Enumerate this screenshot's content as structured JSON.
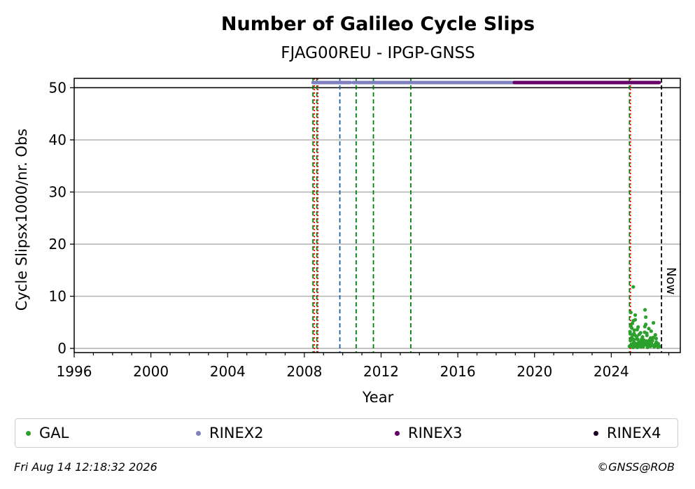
{
  "chart_data": {
    "type": "scatter",
    "title": "Number of Galileo Cycle Slips",
    "subtitle": "FJAG00REU - IPGP-GNSS",
    "xlabel": "Year",
    "ylabel": "Cycle Slipsx1000/nr. Obs",
    "xlim": [
      1996,
      2027.6
    ],
    "ylim": [
      -0.8,
      51.8
    ],
    "x_ticks": [
      1996,
      2000,
      2004,
      2008,
      2012,
      2016,
      2020,
      2024
    ],
    "x_tick_labels": [
      "1996",
      "2000",
      "2004",
      "2008",
      "2012",
      "2016",
      "2020",
      "2024"
    ],
    "y_ticks": [
      0,
      10,
      20,
      30,
      40,
      50
    ],
    "y_tick_labels": [
      "0",
      "10",
      "20",
      "30",
      "40",
      "50"
    ],
    "grid": "y",
    "horizontal_line": 50,
    "now_label": "Now",
    "now_x": 2026.62,
    "vlines": [
      {
        "x": 2008.45,
        "color": "#008000",
        "dash": "dashed"
      },
      {
        "x": 2008.52,
        "color": "#ff0000",
        "dash": "dotted"
      },
      {
        "x": 2008.65,
        "color": "#008000",
        "dash": "dashed"
      },
      {
        "x": 2008.7,
        "color": "#ff0000",
        "dash": "dotted"
      },
      {
        "x": 2009.85,
        "color": "#1f5fa8",
        "dash": "dashed"
      },
      {
        "x": 2010.7,
        "color": "#008000",
        "dash": "dashed"
      },
      {
        "x": 2011.6,
        "color": "#008000",
        "dash": "dashed"
      },
      {
        "x": 2013.55,
        "color": "#008000",
        "dash": "dashed"
      },
      {
        "x": 2024.95,
        "color": "#008000",
        "dash": "dashed"
      },
      {
        "x": 2025.0,
        "color": "#ff0000",
        "dash": "dotted"
      }
    ],
    "rinex_bars": [
      {
        "name": "RINEX2",
        "color": "#8080c0",
        "y": 51,
        "segments": [
          [
            2008.45,
            2010.4
          ],
          [
            2010.55,
            2018.95
          ]
        ]
      },
      {
        "name": "RINEX3",
        "color": "#660066",
        "y": 51,
        "segments": [
          [
            2018.95,
            2026.5
          ]
        ]
      }
    ],
    "series": [
      {
        "name": "GAL",
        "color": "#2ca02c",
        "x": [
          2024.95,
          2024.98,
          2025.0,
          2025.02,
          2025.05,
          2025.07,
          2025.1,
          2025.12,
          2025.15,
          2025.18,
          2025.2,
          2025.22,
          2025.25,
          2025.28,
          2025.3,
          2025.33,
          2025.36,
          2025.4,
          2025.43,
          2025.46,
          2025.5,
          2025.53,
          2025.56,
          2025.6,
          2025.63,
          2025.66,
          2025.7,
          2025.73,
          2025.76,
          2025.8,
          2025.83,
          2025.86,
          2025.9,
          2025.93,
          2025.96,
          2026.0,
          2026.05,
          2026.1,
          2026.15,
          2026.2,
          2026.25,
          2026.3,
          2026.35,
          2026.4,
          2026.45,
          2026.5,
          2025.15,
          2025.25,
          2025.35,
          2024.99,
          2025.04,
          2025.09,
          2025.14,
          2025.19,
          2025.24,
          2025.29,
          2025.34,
          2025.39,
          2025.44,
          2025.49,
          2025.54,
          2025.59,
          2025.64,
          2025.69,
          2025.74,
          2025.79,
          2025.84,
          2025.89,
          2025.94,
          2025.99,
          2026.04,
          2026.09,
          2026.14,
          2026.19,
          2026.24,
          2026.29,
          2026.34,
          2026.39,
          2026.44,
          2025.8,
          2025.75,
          2025.85,
          2026.08,
          2025.02,
          2025.07,
          2025.12,
          2025.17,
          2025.22
        ],
        "y": [
          0.4,
          3.2,
          1.5,
          6.9,
          0.8,
          2.1,
          4.8,
          0.3,
          11.8,
          1.2,
          3.5,
          0.6,
          5.5,
          2.4,
          0.9,
          1.8,
          0.2,
          4.1,
          1.1,
          2.7,
          0.5,
          3.0,
          1.4,
          0.7,
          2.2,
          0.3,
          1.6,
          0.9,
          7.4,
          4.6,
          1.0,
          2.5,
          0.4,
          1.3,
          3.8,
          0.6,
          2.0,
          0.8,
          1.5,
          4.9,
          0.5,
          2.6,
          1.2,
          0.7,
          0.9,
          0.4,
          5.3,
          6.4,
          3.6,
          2.8,
          0.5,
          1.9,
          0.2,
          2.9,
          1.0,
          0.4,
          2.3,
          1.7,
          0.6,
          1.1,
          0.3,
          1.8,
          0.5,
          1.2,
          3.1,
          0.7,
          1.4,
          0.2,
          0.9,
          1.6,
          0.4,
          1.1,
          0.6,
          2.1,
          0.3,
          0.8,
          1.9,
          0.5,
          0.2,
          6.0,
          4.2,
          2.9,
          3.3,
          4.3,
          3.9,
          2.6,
          1.7,
          0.9
        ]
      }
    ],
    "legend": [
      {
        "label": "GAL",
        "color": "#2ca02c"
      },
      {
        "label": "RINEX2",
        "color": "#8080c0"
      },
      {
        "label": "RINEX3",
        "color": "#660066"
      },
      {
        "label": "RINEX4",
        "color": "#1a0022"
      }
    ],
    "legend_position": "bottom"
  },
  "footer": {
    "timestamp": "Fri Aug 14 12:18:32 2026",
    "copyright": "©GNSS@ROB"
  }
}
